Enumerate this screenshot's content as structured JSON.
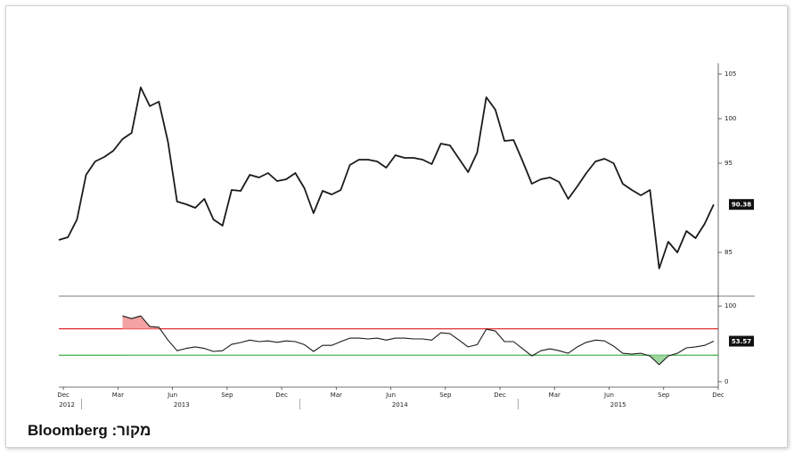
{
  "source": "מקור: Bloomberg",
  "chart_data": [
    {
      "type": "line",
      "x": [
        -0.25,
        0.25,
        0.75,
        1.25,
        1.75,
        2.25,
        2.75,
        3.25,
        3.75,
        4.25,
        4.75,
        5.25,
        5.75,
        6.25,
        6.75,
        7.25,
        7.75,
        8.25,
        8.75,
        9.25,
        9.75,
        10.25,
        10.75,
        11.25,
        11.75,
        12.25,
        12.75,
        13.25,
        13.75,
        14.25,
        14.75,
        15.25,
        15.75,
        16.25,
        16.75,
        17.25,
        17.75,
        18.25,
        18.75,
        19.25,
        19.75,
        20.25,
        20.75,
        21.25,
        21.75,
        22.25,
        22.75,
        23.25,
        23.75,
        24.25,
        24.75,
        25.25,
        25.75,
        26.25,
        26.75,
        27.25,
        27.75,
        28.25,
        28.75,
        29.25,
        29.75,
        30.25,
        30.75,
        31.25,
        31.75,
        32.25,
        32.75,
        33.25,
        33.75,
        34.25,
        34.75,
        35.25,
        35.75
      ],
      "series": [
        {
          "color": "#1a1a1a",
          "values": [
            86.4,
            86.7,
            88.7,
            93.7,
            95.2,
            95.7,
            96.4,
            97.7,
            98.4,
            103.5,
            101.4,
            101.9,
            97.4,
            90.7,
            90.4,
            90.0,
            91.0,
            88.7,
            88.0,
            92.0,
            91.9,
            93.7,
            93.4,
            93.9,
            93.0,
            93.2,
            93.9,
            92.2,
            89.4,
            91.9,
            91.5,
            92.0,
            94.8,
            95.4,
            95.4,
            95.2,
            94.5,
            95.9,
            95.6,
            95.6,
            95.4,
            94.9,
            97.2,
            97.0,
            95.5,
            94.0,
            96.2,
            102.4,
            101.0,
            97.5,
            97.6,
            95.2,
            92.7,
            93.2,
            93.4,
            92.9,
            91.0,
            92.4,
            93.9,
            95.2,
            95.5,
            95.0,
            92.7,
            92.0,
            91.4,
            92.0,
            83.2,
            86.2,
            85.0,
            87.4,
            86.6,
            88.2,
            90.38
          ]
        }
      ],
      "xlim": [
        -0.25,
        36
      ],
      "ylim": [
        80.2,
        106.2
      ],
      "yticks": [
        85,
        95,
        100,
        105
      ]
    },
    {
      "type": "line",
      "x": [
        -0.25,
        0.25,
        0.75,
        1.25,
        1.75,
        2.25,
        2.75,
        3.25,
        3.75,
        4.25,
        4.75,
        5.25,
        5.75,
        6.25,
        6.75,
        7.25,
        7.75,
        8.25,
        8.75,
        9.25,
        9.75,
        10.25,
        10.75,
        11.25,
        11.75,
        12.25,
        12.75,
        13.25,
        13.75,
        14.25,
        14.75,
        15.25,
        15.75,
        16.25,
        16.75,
        17.25,
        17.75,
        18.25,
        18.75,
        19.25,
        19.75,
        20.25,
        20.75,
        21.25,
        21.75,
        22.25,
        22.75,
        23.25,
        23.75,
        24.25,
        24.75,
        25.25,
        25.75,
        26.25,
        26.75,
        27.25,
        27.75,
        28.25,
        28.75,
        29.25,
        29.75,
        30.25,
        30.75,
        31.25,
        31.75,
        32.25,
        32.75,
        33.25,
        33.75,
        34.25,
        34.75,
        35.25,
        35.75
      ],
      "series": [
        {
          "color": "#1a1a1a",
          "values": [
            null,
            null,
            null,
            null,
            null,
            null,
            null,
            87,
            83.5,
            87,
            73,
            72,
            55,
            41,
            44,
            46,
            44,
            40,
            41,
            49.4,
            51.8,
            55,
            53,
            54,
            52,
            54,
            53,
            49,
            40,
            48,
            48,
            53,
            57.6,
            57.6,
            56.5,
            57.6,
            55,
            57.6,
            57.6,
            56.5,
            56.5,
            55,
            64.7,
            63.5,
            55,
            46,
            49,
            69.4,
            67,
            53,
            53,
            43.5,
            34,
            41,
            43.5,
            41,
            37.6,
            46,
            52,
            55,
            54,
            47,
            37.6,
            36.5,
            37.6,
            34,
            22.4,
            34,
            37.6,
            44.7,
            46,
            48,
            53.57
          ]
        }
      ],
      "reference_lines": [
        {
          "value": 70,
          "color": "#e0282e",
          "fill": "#f4a3a3"
        },
        {
          "value": 35,
          "color": "#3cb043",
          "fill": "#9ed89e"
        }
      ],
      "xlim": [
        -0.25,
        36
      ],
      "ylim": [
        -6,
        112
      ],
      "yticks": [
        0,
        100
      ],
      "xticks": [
        {
          "value": 0,
          "label": "Dec"
        },
        {
          "value": 3,
          "label": "Mar"
        },
        {
          "value": 6,
          "label": "Jun"
        },
        {
          "value": 9,
          "label": "Sep"
        },
        {
          "value": 12,
          "label": "Dec"
        },
        {
          "value": 15,
          "label": "Mar"
        },
        {
          "value": 18,
          "label": "Jun"
        },
        {
          "value": 21,
          "label": "Sep"
        },
        {
          "value": 24,
          "label": "Dec"
        },
        {
          "value": 27,
          "label": "Mar"
        },
        {
          "value": 30,
          "label": "Jun"
        },
        {
          "value": 33,
          "label": "Sep"
        },
        {
          "value": 36,
          "label": "Dec"
        }
      ],
      "year_labels": [
        {
          "value": 0,
          "label": "2012"
        },
        {
          "value": 6.5,
          "label": "2013"
        },
        {
          "value": 18.5,
          "label": "2014"
        },
        {
          "value": 30.5,
          "label": "2015"
        }
      ]
    }
  ]
}
